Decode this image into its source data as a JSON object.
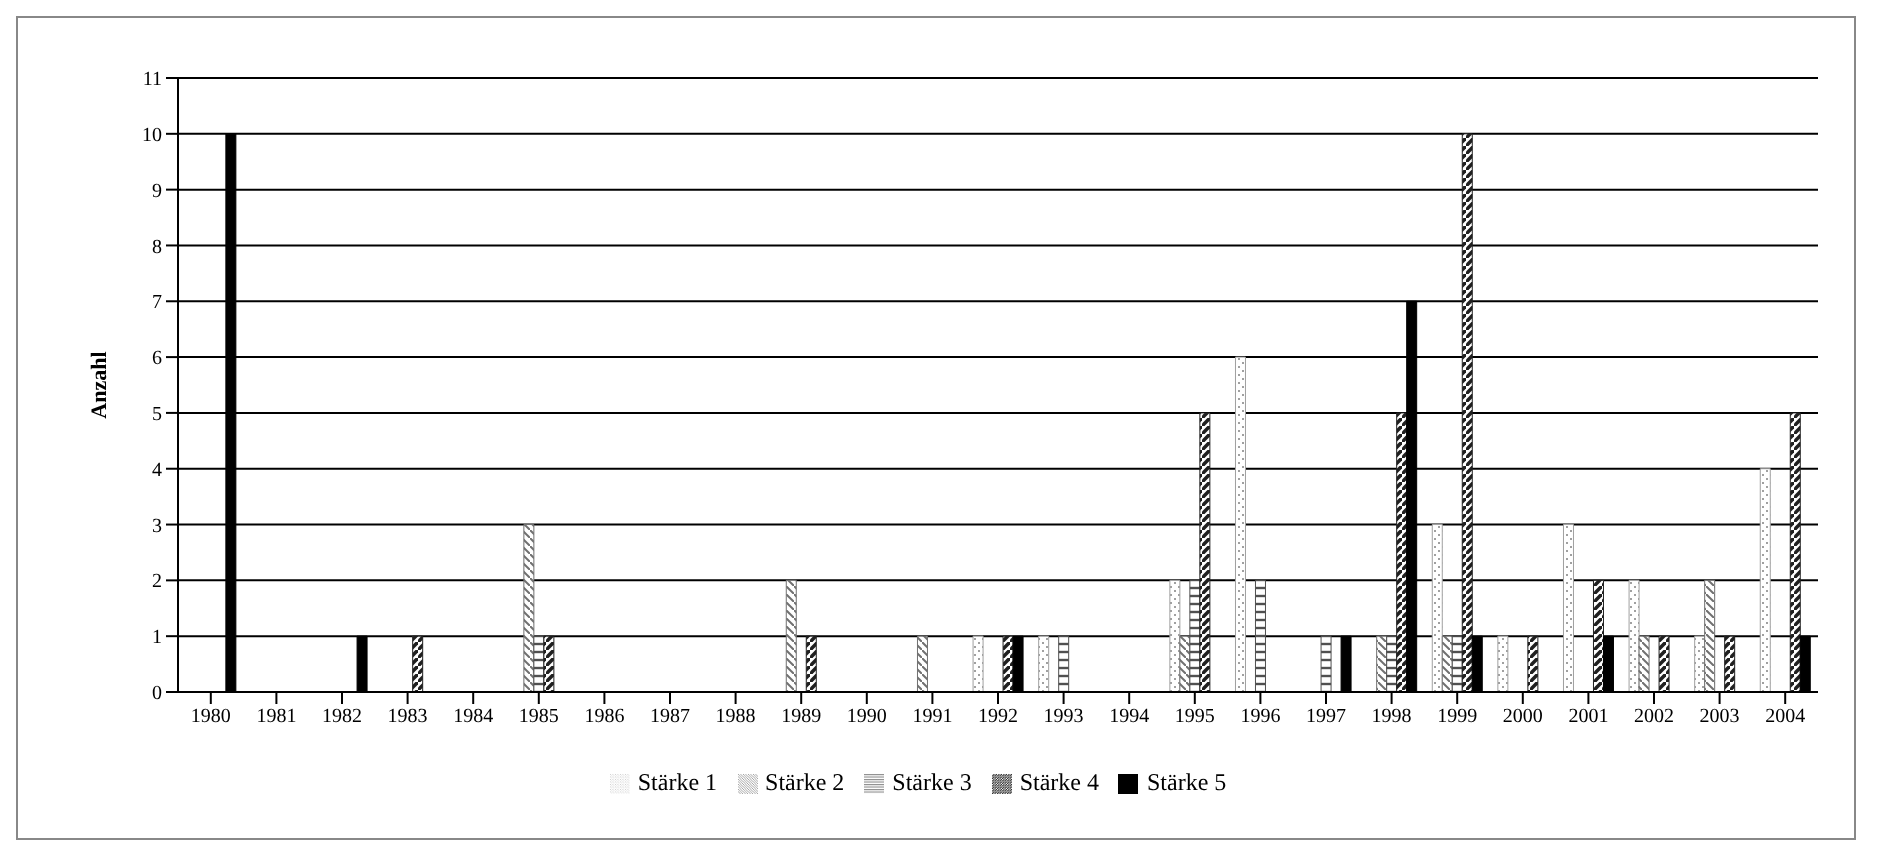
{
  "chart_data": {
    "type": "bar",
    "ylabel": "Anzahl",
    "categories": [
      "1980",
      "1981",
      "1982",
      "1983",
      "1984",
      "1985",
      "1986",
      "1987",
      "1988",
      "1989",
      "1990",
      "1991",
      "1992",
      "1993",
      "1994",
      "1995",
      "1996",
      "1997",
      "1998",
      "1999",
      "2000",
      "2001",
      "2002",
      "2003",
      "2004"
    ],
    "series": [
      {
        "name": "Stärke 1",
        "color": "#a0a0a0",
        "values": [
          0,
          0,
          0,
          0,
          0,
          0,
          0,
          0,
          0,
          0,
          0,
          0,
          1,
          1,
          0,
          2,
          6,
          0,
          0,
          3,
          1,
          3,
          2,
          1,
          4
        ]
      },
      {
        "name": "Stärke 2",
        "color": "#707070",
        "values": [
          0,
          0,
          0,
          0,
          0,
          3,
          0,
          0,
          0,
          2,
          0,
          1,
          0,
          0,
          0,
          1,
          0,
          0,
          1,
          1,
          0,
          0,
          1,
          2,
          0
        ]
      },
      {
        "name": "Stärke 3",
        "color": "#505050",
        "values": [
          0,
          0,
          0,
          0,
          0,
          1,
          0,
          0,
          0,
          0,
          0,
          0,
          0,
          1,
          0,
          2,
          2,
          1,
          1,
          1,
          0,
          0,
          0,
          0,
          0
        ]
      },
      {
        "name": "Stärke 4",
        "color": "#202020",
        "values": [
          0,
          0,
          0,
          1,
          0,
          1,
          0,
          0,
          0,
          1,
          0,
          0,
          1,
          0,
          0,
          5,
          0,
          0,
          5,
          10,
          1,
          2,
          1,
          1,
          5
        ]
      },
      {
        "name": "Stärke 5",
        "color": "#000000",
        "values": [
          10,
          0,
          1,
          0,
          0,
          0,
          0,
          0,
          0,
          0,
          0,
          0,
          1,
          0,
          0,
          0,
          0,
          1,
          7,
          1,
          0,
          1,
          0,
          0,
          1
        ]
      }
    ],
    "ylim": [
      0,
      11
    ],
    "yticks": [
      0,
      1,
      2,
      3,
      4,
      5,
      6,
      7,
      8,
      9,
      10,
      11
    ],
    "grid": "y",
    "legend": "bottom"
  }
}
